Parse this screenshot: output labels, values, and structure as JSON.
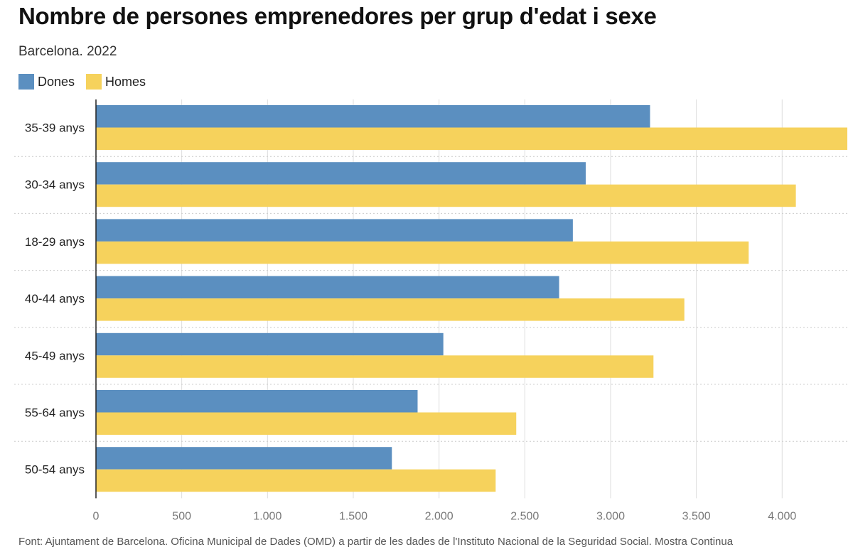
{
  "chart_data": {
    "type": "bar",
    "orientation": "horizontal",
    "title": "Nombre de persones emprenedores per grup d'edat i sexe",
    "subtitle": "Barcelona. 2022",
    "categories": [
      "35-39 anys",
      "30-34 anys",
      "18-29 anys",
      "40-44 anys",
      "45-49 anys",
      "55-64 anys",
      "50-54 anys"
    ],
    "series": [
      {
        "name": "Dones",
        "color": "#5b8fc0",
        "values": [
          3230,
          2855,
          2780,
          2700,
          2025,
          1875,
          1725
        ]
      },
      {
        "name": "Homes",
        "color": "#f6d25c",
        "values": [
          4380,
          4080,
          3805,
          3430,
          3250,
          2450,
          2330
        ]
      }
    ],
    "xlim": [
      0,
      4380
    ],
    "x_ticks": [
      0,
      500,
      1000,
      1500,
      2000,
      2500,
      3000,
      3500,
      4000
    ],
    "x_tick_labels": [
      "0",
      "500",
      "1.000",
      "1.500",
      "2.000",
      "2.500",
      "3.000",
      "3.500",
      "4.000"
    ],
    "grid": "vertical",
    "legend": "top-left",
    "xlabel": "",
    "ylabel": ""
  },
  "footnote": "Font: Ajuntament de Barcelona. Oficina Municipal de Dades (OMD) a partir de les dades de l'Instituto Nacional de la Seguridad Social. Mostra Continua"
}
